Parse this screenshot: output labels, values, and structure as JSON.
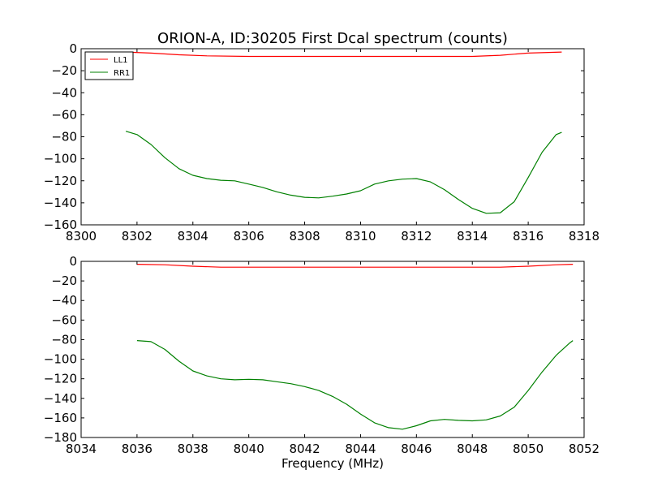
{
  "chart_data": [
    {
      "type": "line",
      "title": "ORION-A, ID:30205 First Dcal spectrum (counts)",
      "xlabel": "",
      "ylabel": "",
      "xlim": [
        8300,
        8318
      ],
      "ylim": [
        -160,
        0
      ],
      "xticks": [
        8300,
        8302,
        8304,
        8306,
        8308,
        8310,
        8312,
        8314,
        8316,
        8318
      ],
      "yticks": [
        0,
        -20,
        -40,
        -60,
        -80,
        -100,
        -120,
        -140,
        -160
      ],
      "legend": {
        "placement": "top-left",
        "entries": [
          "LL1",
          "RR1"
        ]
      },
      "series": [
        {
          "name": "LL1",
          "color": "#ff0000",
          "x": [
            8301.6,
            8302.5,
            8303.5,
            8304.5,
            8306,
            8308,
            8310,
            8312,
            8314,
            8315,
            8316,
            8317.2
          ],
          "y": [
            -3,
            -4,
            -5.5,
            -6.5,
            -7,
            -7,
            -7,
            -7,
            -7,
            -6,
            -4,
            -3
          ]
        },
        {
          "name": "RR1",
          "color": "#008000",
          "x": [
            8301.6,
            8302,
            8302.5,
            8303,
            8303.5,
            8304,
            8304.5,
            8305,
            8305.5,
            8306,
            8306.5,
            8307,
            8307.5,
            8308,
            8308.5,
            8309,
            8309.5,
            8310,
            8310.5,
            8311,
            8311.5,
            8312,
            8312.5,
            8313,
            8313.5,
            8314,
            8314.5,
            8315,
            8315.5,
            8316,
            8316.5,
            8317,
            8317.2
          ],
          "y": [
            -75,
            -78,
            -87,
            -99,
            -109,
            -115,
            -118,
            -119.5,
            -120,
            -123,
            -126,
            -130,
            -133,
            -135,
            -135.5,
            -134,
            -132,
            -129,
            -123,
            -120,
            -118.5,
            -118,
            -121,
            -128,
            -137,
            -145,
            -149.5,
            -149,
            -139,
            -117,
            -94,
            -78,
            -76
          ]
        }
      ]
    },
    {
      "type": "line",
      "title": "",
      "xlabel": "Frequency (MHz)",
      "ylabel": "",
      "xlim": [
        8034,
        8052
      ],
      "ylim": [
        -180,
        0
      ],
      "xticks": [
        8034,
        8036,
        8038,
        8040,
        8042,
        8044,
        8046,
        8048,
        8050,
        8052
      ],
      "yticks": [
        0,
        -20,
        -40,
        -60,
        -80,
        -100,
        -120,
        -140,
        -160,
        -180
      ],
      "series": [
        {
          "name": "LL1",
          "color": "#ff0000",
          "x": [
            8036,
            8037,
            8038,
            8039,
            8040,
            8042,
            8044,
            8046,
            8048,
            8049,
            8050,
            8051,
            8051.6
          ],
          "y": [
            -3,
            -3.5,
            -5,
            -6,
            -6,
            -6,
            -6,
            -6,
            -6,
            -6,
            -5,
            -3.5,
            -3
          ]
        },
        {
          "name": "RR1",
          "color": "#008000",
          "x": [
            8036,
            8036.5,
            8037,
            8037.5,
            8038,
            8038.5,
            8039,
            8039.5,
            8040,
            8040.5,
            8041,
            8041.5,
            8042,
            8042.5,
            8043,
            8043.5,
            8044,
            8044.5,
            8045,
            8045.5,
            8046,
            8046.5,
            8047,
            8047.5,
            8048,
            8048.5,
            8049,
            8049.5,
            8050,
            8050.5,
            8051,
            8051.5,
            8051.6
          ],
          "y": [
            -81,
            -82,
            -90,
            -102,
            -112,
            -117,
            -120,
            -121,
            -120.5,
            -121,
            -123,
            -125,
            -128,
            -132,
            -138,
            -146,
            -156,
            -165,
            -170,
            -171.5,
            -168,
            -163,
            -161.5,
            -162.5,
            -163,
            -162,
            -158,
            -149,
            -132,
            -113,
            -96,
            -83,
            -81
          ]
        }
      ]
    }
  ]
}
